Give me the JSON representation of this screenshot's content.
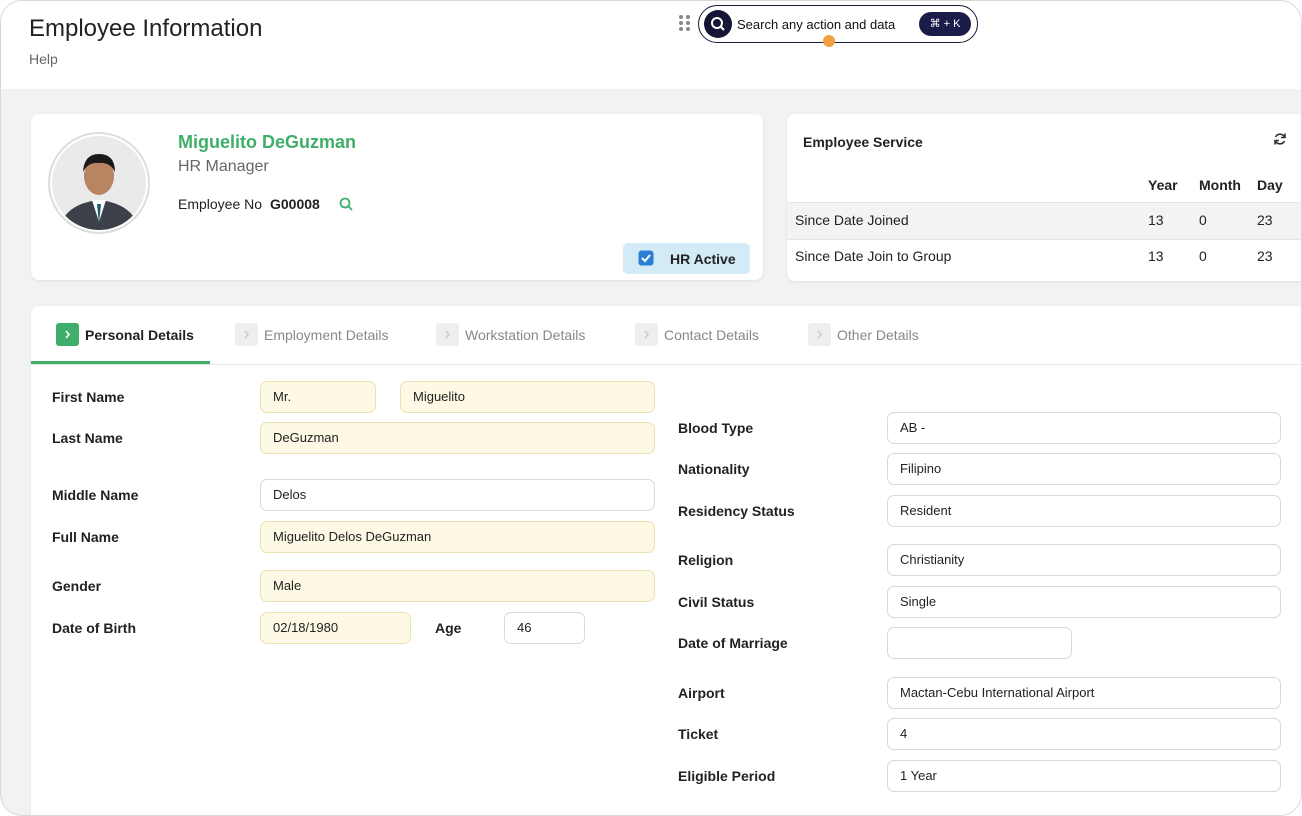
{
  "header": {
    "title": "Employee Information",
    "help": "Help",
    "search_placeholder": "Search any action and data",
    "shortcut": "⌘ + K"
  },
  "profile": {
    "name": "Miguelito DeGuzman",
    "position": "HR Manager",
    "employee_no_label": "Employee No",
    "employee_no": "G00008",
    "status": "HR Active"
  },
  "service": {
    "title": "Employee Service",
    "columns": [
      "Year",
      "Month",
      "Day"
    ],
    "rows": [
      {
        "label": "Since Date Joined",
        "values": [
          13,
          0,
          23
        ]
      },
      {
        "label": "Since Date Join to Group",
        "values": [
          13,
          0,
          23
        ]
      }
    ]
  },
  "tabs": [
    "Personal Details",
    "Employment Details",
    "Workstation Details",
    "Contact Details",
    "Other Details"
  ],
  "left_fields": [
    {
      "label": "First Name",
      "inputs": [
        "Mr.",
        "Miguelito"
      ]
    },
    {
      "label": "Last Name",
      "inputs": [
        "DeGuzman"
      ]
    },
    {
      "label": "Middle Name",
      "inputs": [
        "Delos"
      ]
    },
    {
      "label": "Full Name",
      "inputs": [
        "Miguelito Delos DeGuzman"
      ]
    },
    {
      "label": "Gender",
      "inputs": [
        "Male"
      ]
    },
    {
      "label": "Date of Birth",
      "inputs": [
        "02/18/1980"
      ]
    }
  ],
  "age": {
    "label": "Age",
    "value": 46
  },
  "right_fields": [
    {
      "label": "Blood Type",
      "inputs": [
        "AB -"
      ]
    },
    {
      "label": "Nationality",
      "inputs": [
        "Filipino"
      ]
    },
    {
      "label": "Residency Status",
      "inputs": [
        "Resident"
      ]
    },
    {
      "label": "Religion",
      "inputs": [
        "Christianity"
      ]
    },
    {
      "label": "Civil Status",
      "inputs": [
        "Single"
      ]
    },
    {
      "label": "Date of Marriage"
    },
    {
      "label": "Airport",
      "inputs": [
        "Mactan-Cebu International Airport"
      ]
    },
    {
      "label": "Ticket",
      "inputs": [
        4
      ]
    },
    {
      "label": "Eligible Period",
      "inputs": [
        "1 Year"
      ]
    }
  ]
}
